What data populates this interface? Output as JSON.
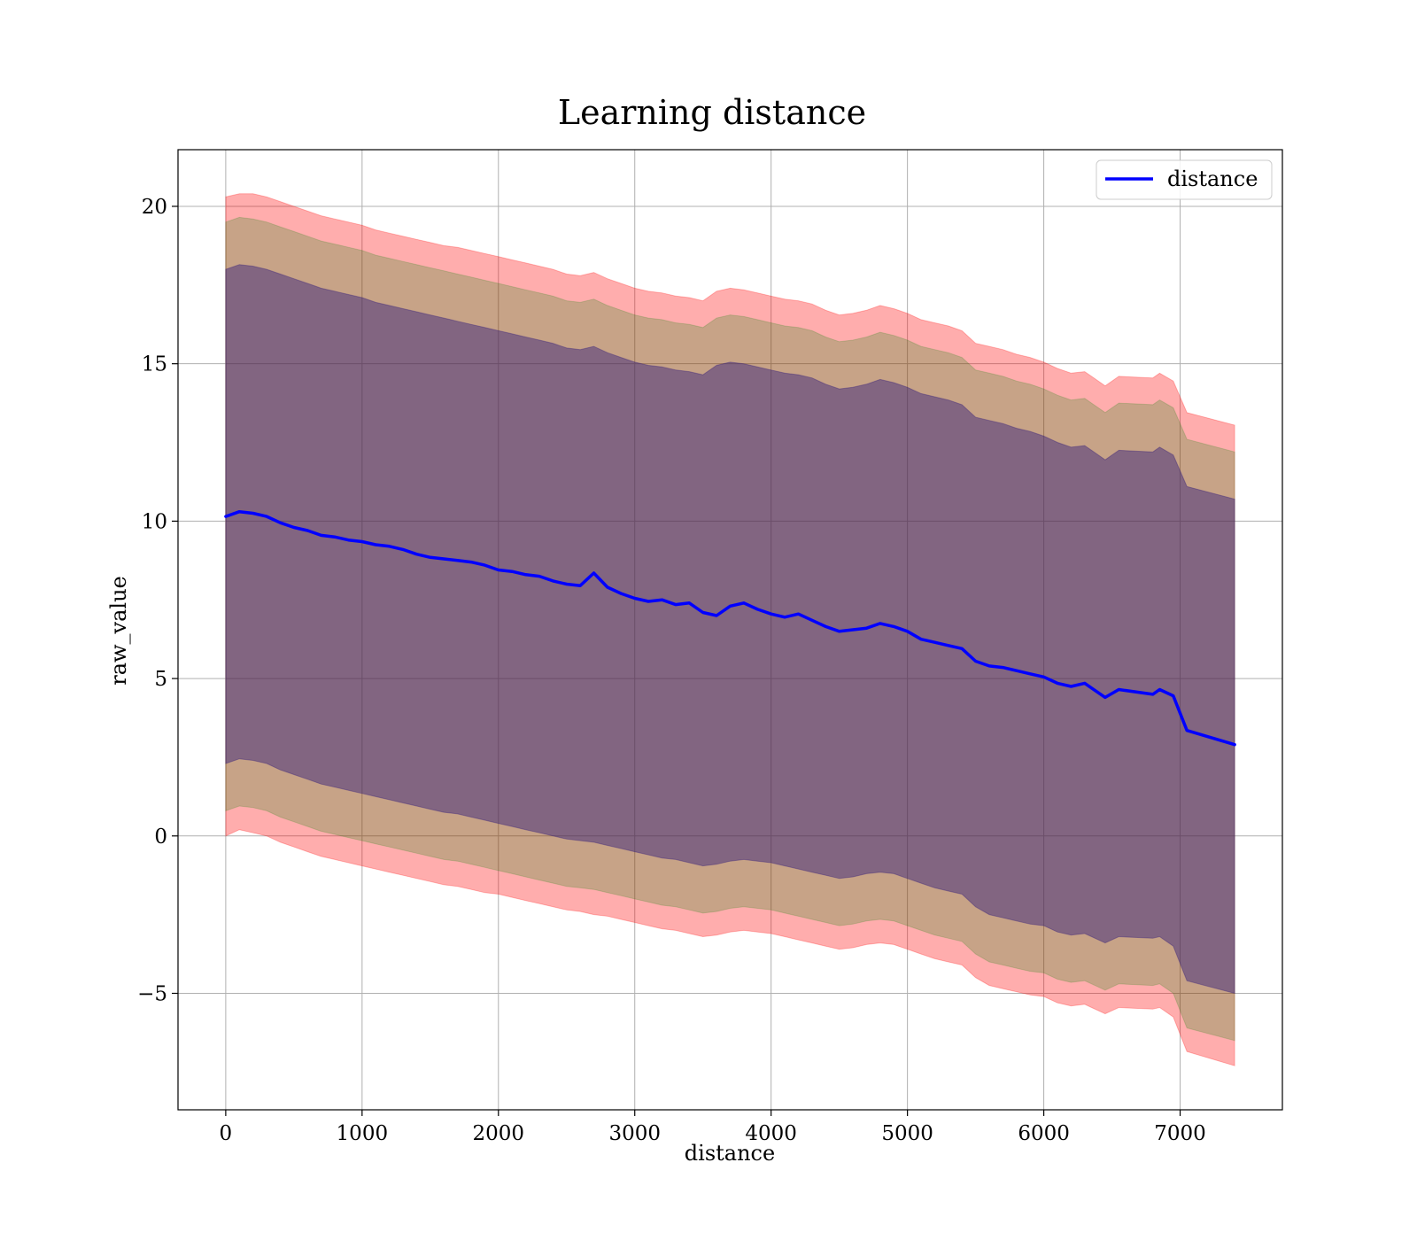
{
  "chart_data": {
    "type": "line",
    "title": "Learning distance",
    "xlabel": "distance",
    "ylabel": "raw_value",
    "xlim": [
      -350,
      7750
    ],
    "ylim": [
      -8.7,
      21.8
    ],
    "xticks": [
      0,
      1000,
      2000,
      3000,
      4000,
      5000,
      6000,
      7000
    ],
    "yticks": [
      -5,
      0,
      5,
      10,
      15,
      20
    ],
    "xtick_labels": [
      "0",
      "1000",
      "2000",
      "3000",
      "4000",
      "5000",
      "6000",
      "7000"
    ],
    "ytick_labels": [
      "−5",
      "0",
      "5",
      "10",
      "15",
      "20"
    ],
    "grid": true,
    "legend_position": "top-right",
    "legend": [
      {
        "name": "distance",
        "color": "#0000ff"
      }
    ],
    "series": [
      {
        "name": "distance",
        "color": "#0000ff",
        "x": [
          0,
          100,
          200,
          300,
          400,
          500,
          600,
          700,
          800,
          900,
          1000,
          1100,
          1200,
          1300,
          1400,
          1500,
          1600,
          1700,
          1800,
          1900,
          2000,
          2100,
          2200,
          2300,
          2400,
          2500,
          2600,
          2700,
          2800,
          2900,
          3000,
          3100,
          3200,
          3300,
          3400,
          3500,
          3600,
          3700,
          3800,
          3900,
          4000,
          4100,
          4200,
          4300,
          4400,
          4500,
          4600,
          4700,
          4800,
          4900,
          5000,
          5100,
          5200,
          5300,
          5400,
          5500,
          5600,
          5700,
          5800,
          5900,
          6000,
          6100,
          6200,
          6300,
          6350,
          6450,
          6550,
          6800,
          6850,
          6950,
          7050,
          7400
        ],
        "y": [
          10.15,
          10.3,
          10.25,
          10.15,
          9.95,
          9.8,
          9.7,
          9.55,
          9.5,
          9.4,
          9.35,
          9.25,
          9.2,
          9.1,
          8.95,
          8.85,
          8.8,
          8.75,
          8.7,
          8.6,
          8.45,
          8.4,
          8.3,
          8.25,
          8.1,
          8.0,
          7.95,
          8.35,
          7.9,
          7.7,
          7.55,
          7.45,
          7.5,
          7.35,
          7.4,
          7.1,
          7.0,
          7.3,
          7.4,
          7.2,
          7.05,
          6.95,
          7.05,
          6.85,
          6.65,
          6.5,
          6.55,
          6.6,
          6.75,
          6.65,
          6.5,
          6.25,
          6.15,
          6.05,
          5.95,
          5.55,
          5.4,
          5.35,
          5.25,
          5.15,
          5.05,
          4.85,
          4.75,
          4.85,
          4.7,
          4.4,
          4.65,
          4.5,
          4.65,
          4.45,
          3.35,
          2.9
        ]
      }
    ],
    "bands": [
      {
        "color": "#ff0000",
        "opacity": 0.32,
        "upper": [
          20.3,
          20.4,
          20.4,
          20.3,
          20.15,
          20.0,
          19.85,
          19.7,
          19.6,
          19.5,
          19.4,
          19.25,
          19.15,
          19.05,
          18.95,
          18.85,
          18.75,
          18.7,
          18.6,
          18.5,
          18.4,
          18.3,
          18.2,
          18.1,
          18.0,
          17.85,
          17.8,
          17.9,
          17.7,
          17.55,
          17.4,
          17.3,
          17.25,
          17.15,
          17.1,
          17.0,
          17.3,
          17.4,
          17.35,
          17.25,
          17.15,
          17.05,
          17.0,
          16.9,
          16.7,
          16.55,
          16.6,
          16.7,
          16.85,
          16.75,
          16.6,
          16.4,
          16.3,
          16.2,
          16.05,
          15.65,
          15.55,
          15.45,
          15.3,
          15.2,
          15.05,
          14.85,
          14.7,
          14.75,
          14.6,
          14.3,
          14.6,
          14.55,
          14.7,
          14.45,
          13.45,
          13.05
        ],
        "lower": [
          0.0,
          0.2,
          0.1,
          0.0,
          -0.2,
          -0.35,
          -0.5,
          -0.65,
          -0.75,
          -0.85,
          -0.95,
          -1.05,
          -1.15,
          -1.25,
          -1.35,
          -1.45,
          -1.55,
          -1.6,
          -1.7,
          -1.8,
          -1.85,
          -1.95,
          -2.05,
          -2.15,
          -2.25,
          -2.35,
          -2.4,
          -2.5,
          -2.55,
          -2.65,
          -2.75,
          -2.85,
          -2.95,
          -3.0,
          -3.1,
          -3.2,
          -3.15,
          -3.05,
          -3.0,
          -3.05,
          -3.1,
          -3.2,
          -3.3,
          -3.4,
          -3.5,
          -3.6,
          -3.55,
          -3.45,
          -3.4,
          -3.45,
          -3.6,
          -3.75,
          -3.9,
          -4.0,
          -4.1,
          -4.5,
          -4.75,
          -4.85,
          -4.95,
          -5.05,
          -5.1,
          -5.3,
          -5.4,
          -5.35,
          -5.45,
          -5.65,
          -5.45,
          -5.5,
          -5.45,
          -5.75,
          -6.85,
          -7.3
        ]
      },
      {
        "color": "#008000",
        "opacity": 0.22,
        "upper": [
          19.5,
          19.65,
          19.6,
          19.5,
          19.35,
          19.2,
          19.05,
          18.9,
          18.8,
          18.7,
          18.6,
          18.45,
          18.35,
          18.25,
          18.15,
          18.05,
          17.95,
          17.85,
          17.75,
          17.65,
          17.55,
          17.45,
          17.35,
          17.25,
          17.15,
          17.0,
          16.95,
          17.05,
          16.85,
          16.7,
          16.55,
          16.45,
          16.4,
          16.3,
          16.25,
          16.15,
          16.45,
          16.55,
          16.5,
          16.4,
          16.3,
          16.2,
          16.15,
          16.05,
          15.85,
          15.7,
          15.75,
          15.85,
          16.0,
          15.9,
          15.75,
          15.55,
          15.45,
          15.35,
          15.2,
          14.8,
          14.7,
          14.6,
          14.45,
          14.35,
          14.2,
          14.0,
          13.85,
          13.9,
          13.75,
          13.45,
          13.75,
          13.7,
          13.85,
          13.6,
          12.6,
          12.2
        ],
        "lower": [
          0.8,
          0.95,
          0.9,
          0.8,
          0.6,
          0.45,
          0.3,
          0.15,
          0.05,
          -0.05,
          -0.15,
          -0.25,
          -0.35,
          -0.45,
          -0.55,
          -0.65,
          -0.75,
          -0.8,
          -0.9,
          -1.0,
          -1.1,
          -1.2,
          -1.3,
          -1.4,
          -1.5,
          -1.6,
          -1.65,
          -1.7,
          -1.8,
          -1.9,
          -2.0,
          -2.1,
          -2.2,
          -2.25,
          -2.35,
          -2.45,
          -2.4,
          -2.3,
          -2.25,
          -2.3,
          -2.35,
          -2.45,
          -2.55,
          -2.65,
          -2.75,
          -2.85,
          -2.8,
          -2.7,
          -2.65,
          -2.7,
          -2.85,
          -3.0,
          -3.15,
          -3.25,
          -3.35,
          -3.75,
          -4.0,
          -4.1,
          -4.2,
          -4.3,
          -4.35,
          -4.55,
          -4.65,
          -4.6,
          -4.7,
          -4.9,
          -4.7,
          -4.75,
          -4.7,
          -5.0,
          -6.1,
          -6.5
        ]
      },
      {
        "color": "#2e1a7a",
        "opacity": 0.45,
        "upper": [
          18.0,
          18.15,
          18.1,
          18.0,
          17.85,
          17.7,
          17.55,
          17.4,
          17.3,
          17.2,
          17.1,
          16.95,
          16.85,
          16.75,
          16.65,
          16.55,
          16.45,
          16.35,
          16.25,
          16.15,
          16.05,
          15.95,
          15.85,
          15.75,
          15.65,
          15.5,
          15.45,
          15.55,
          15.35,
          15.2,
          15.05,
          14.95,
          14.9,
          14.8,
          14.75,
          14.65,
          14.95,
          15.05,
          15.0,
          14.9,
          14.8,
          14.7,
          14.65,
          14.55,
          14.35,
          14.2,
          14.25,
          14.35,
          14.5,
          14.4,
          14.25,
          14.05,
          13.95,
          13.85,
          13.7,
          13.3,
          13.2,
          13.1,
          12.95,
          12.85,
          12.7,
          12.5,
          12.35,
          12.4,
          12.25,
          11.95,
          12.25,
          12.2,
          12.35,
          12.1,
          11.1,
          10.7
        ],
        "lower": [
          2.3,
          2.45,
          2.4,
          2.3,
          2.1,
          1.95,
          1.8,
          1.65,
          1.55,
          1.45,
          1.35,
          1.25,
          1.15,
          1.05,
          0.95,
          0.85,
          0.75,
          0.7,
          0.6,
          0.5,
          0.4,
          0.3,
          0.2,
          0.1,
          0.0,
          -0.1,
          -0.15,
          -0.2,
          -0.3,
          -0.4,
          -0.5,
          -0.6,
          -0.7,
          -0.75,
          -0.85,
          -0.95,
          -0.9,
          -0.8,
          -0.75,
          -0.8,
          -0.85,
          -0.95,
          -1.05,
          -1.15,
          -1.25,
          -1.35,
          -1.3,
          -1.2,
          -1.15,
          -1.2,
          -1.35,
          -1.5,
          -1.65,
          -1.75,
          -1.85,
          -2.25,
          -2.5,
          -2.6,
          -2.7,
          -2.8,
          -2.85,
          -3.05,
          -3.15,
          -3.1,
          -3.2,
          -3.4,
          -3.2,
          -3.25,
          -3.2,
          -3.5,
          -4.6,
          -5.0
        ]
      }
    ]
  }
}
